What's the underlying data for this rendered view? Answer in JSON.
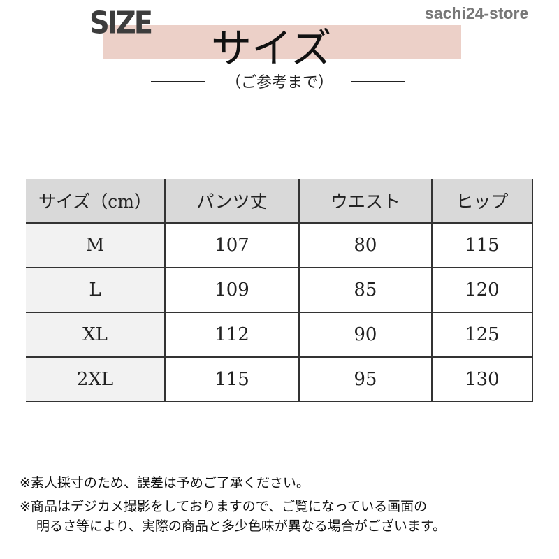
{
  "header": {
    "logo_text": "SIZE",
    "title": "サイズ",
    "store": "sachi24-store",
    "subtitle": "（ご参考まで）",
    "band_color": "#ecd0c8"
  },
  "table": {
    "columns": [
      "サイズ（cm）",
      "パンツ丈",
      "ウエスト",
      "ヒップ"
    ],
    "rows": [
      [
        "M",
        "107",
        "80",
        "115"
      ],
      [
        "L",
        "109",
        "85",
        "120"
      ],
      [
        "XL",
        "112",
        "90",
        "125"
      ],
      [
        "2XL",
        "115",
        "95",
        "130"
      ]
    ]
  },
  "notes": [
    "※素人採寸のため、誤差は予めご了承ください。",
    "※商品はデジカメ撮影をしておりますので、ご覧になっている画面の",
    "明るさ等により、実際の商品と多少色味が異なる場合がございます。"
  ]
}
